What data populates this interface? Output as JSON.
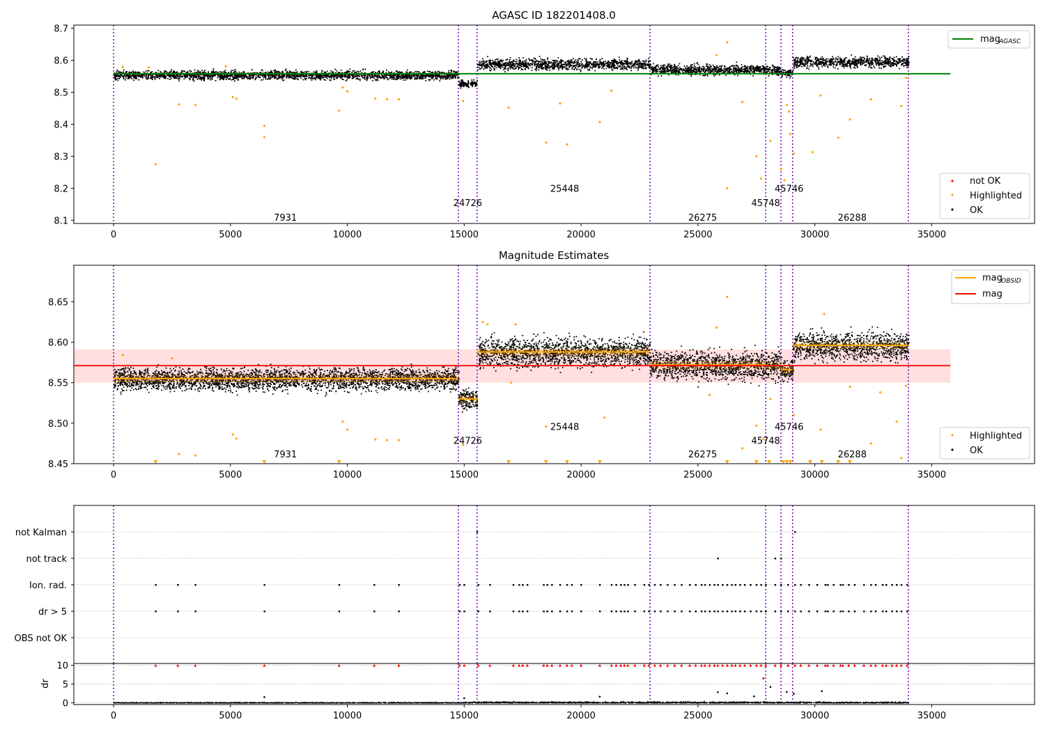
{
  "chart_data": [
    {
      "type": "scatter",
      "title": "AGASC ID 182201408.0",
      "xlim": [
        -1700,
        39400
      ],
      "ylim": [
        8.09,
        8.71
      ],
      "x_ticks": [
        0,
        5000,
        10000,
        15000,
        20000,
        25000,
        30000,
        35000
      ],
      "y_ticks": [
        8.1,
        8.2,
        8.3,
        8.4,
        8.5,
        8.6,
        8.7
      ],
      "y_tick_labels": [
        "8.1",
        "8.2",
        "8.3",
        "8.4",
        "8.5",
        "8.6",
        "8.7"
      ],
      "obs_boundaries": [
        0,
        14750,
        15550,
        22950,
        27900,
        28550,
        29050,
        34000
      ],
      "obs_labels": [
        {
          "text": "7931",
          "x": 7350,
          "y": 8.11
        },
        {
          "text": "24726",
          "x": 15150,
          "y": 8.155
        },
        {
          "text": "25448",
          "x": 19300,
          "y": 8.2
        },
        {
          "text": "26275",
          "x": 25200,
          "y": 8.11
        },
        {
          "text": "45748",
          "x": 27900,
          "y": 8.155
        },
        {
          "text": "45746",
          "x": 28900,
          "y": 8.2
        },
        {
          "text": "26288",
          "x": 31600,
          "y": 8.11
        }
      ],
      "segments": [
        {
          "x0": 0,
          "x1": 14750,
          "mean": 8.555,
          "halfwidth": 0.013
        },
        {
          "x0": 14750,
          "x1": 15550,
          "mean": 8.528,
          "halfwidth": 0.011
        },
        {
          "x0": 15550,
          "x1": 22950,
          "mean": 8.589,
          "halfwidth": 0.016
        },
        {
          "x0": 22950,
          "x1": 27900,
          "mean": 8.572,
          "halfwidth": 0.015
        },
        {
          "x0": 27900,
          "x1": 28550,
          "mean": 8.57,
          "halfwidth": 0.016
        },
        {
          "x0": 28550,
          "x1": 29050,
          "mean": 8.562,
          "halfwidth": 0.012
        },
        {
          "x0": 29050,
          "x1": 34000,
          "mean": 8.596,
          "halfwidth": 0.016
        }
      ],
      "series": [
        {
          "name": "mag_AGASC",
          "type": "hline",
          "y": 8.558,
          "x0": 0,
          "x1": 35800,
          "color": "#008000"
        },
        {
          "name": "not OK",
          "color": "#ff0000",
          "points": []
        },
        {
          "name": "Highlighted",
          "color": "#ffa500",
          "points": [
            [
              1800,
              8.275
            ],
            [
              2800,
              8.462
            ],
            [
              3500,
              8.46
            ],
            [
              5100,
              8.485
            ],
            [
              5250,
              8.48
            ],
            [
              6450,
              8.36
            ],
            [
              6450,
              8.395
            ],
            [
              9650,
              8.443
            ],
            [
              9800,
              8.515
            ],
            [
              10000,
              8.503
            ],
            [
              11200,
              8.48
            ],
            [
              11700,
              8.478
            ],
            [
              12200,
              8.478
            ],
            [
              14950,
              8.473
            ],
            [
              16900,
              8.452
            ],
            [
              18500,
              8.343
            ],
            [
              19100,
              8.465
            ],
            [
              19400,
              8.337
            ],
            [
              20800,
              8.407
            ],
            [
              21300,
              8.505
            ],
            [
              26250,
              8.2
            ],
            [
              26250,
              8.656
            ],
            [
              26900,
              8.47
            ],
            [
              27500,
              8.3
            ],
            [
              27700,
              8.23
            ],
            [
              28100,
              8.348
            ],
            [
              28550,
              8.26
            ],
            [
              28700,
              8.225
            ],
            [
              28800,
              8.46
            ],
            [
              28900,
              8.44
            ],
            [
              28950,
              8.37
            ],
            [
              29100,
              8.308
            ],
            [
              29900,
              8.313
            ],
            [
              30250,
              8.49
            ],
            [
              31000,
              8.358
            ],
            [
              31500,
              8.415
            ],
            [
              32400,
              8.478
            ],
            [
              33700,
              8.457
            ],
            [
              33900,
              8.545
            ],
            [
              1500,
              8.578
            ],
            [
              400,
              8.579
            ],
            [
              4800,
              8.581
            ],
            [
              25800,
              8.616
            ]
          ]
        },
        {
          "name": "OK",
          "color": "#000000",
          "points": []
        }
      ],
      "legend": {
        "position": "top-right",
        "entries": [
          "mag",
          "AGASC"
        ]
      },
      "legend2": {
        "position": "bottom-right",
        "entries": [
          "not OK",
          "Highlighted",
          "OK"
        ]
      }
    },
    {
      "type": "scatter",
      "title": "Magnitude Estimates",
      "xlim": [
        -1700,
        39400
      ],
      "ylim": [
        8.45,
        8.695
      ],
      "x_ticks": [
        0,
        5000,
        10000,
        15000,
        20000,
        25000,
        30000,
        35000
      ],
      "y_ticks": [
        8.45,
        8.5,
        8.55,
        8.6,
        8.65
      ],
      "y_tick_labels": [
        "8.45",
        "8.50",
        "8.55",
        "8.60",
        "8.65"
      ],
      "obs_boundaries": [
        0,
        14750,
        15550,
        22950,
        27900,
        28550,
        29050,
        34000
      ],
      "obs_labels": [
        {
          "text": "7931",
          "x": 7350,
          "y": 8.462
        },
        {
          "text": "24726",
          "x": 15150,
          "y": 8.479
        },
        {
          "text": "25448",
          "x": 19300,
          "y": 8.496
        },
        {
          "text": "26275",
          "x": 25200,
          "y": 8.462
        },
        {
          "text": "45748",
          "x": 27900,
          "y": 8.479
        },
        {
          "text": "45746",
          "x": 28900,
          "y": 8.496
        },
        {
          "text": "26288",
          "x": 31600,
          "y": 8.462
        }
      ],
      "band": {
        "y0": 8.55,
        "y1": 8.591,
        "x0": -1700,
        "x1": 35800,
        "color": "#ffb0b0"
      },
      "segments": [
        {
          "x0": 0,
          "x1": 14750,
          "mean": 8.555,
          "halfwidth": 0.013
        },
        {
          "x0": 14750,
          "x1": 15550,
          "mean": 8.53,
          "halfwidth": 0.011
        },
        {
          "x0": 15550,
          "x1": 22950,
          "mean": 8.588,
          "halfwidth": 0.017
        },
        {
          "x0": 22950,
          "x1": 27900,
          "mean": 8.572,
          "halfwidth": 0.016
        },
        {
          "x0": 27900,
          "x1": 28550,
          "mean": 8.571,
          "halfwidth": 0.016
        },
        {
          "x0": 28550,
          "x1": 29050,
          "mean": 8.566,
          "halfwidth": 0.012
        },
        {
          "x0": 29050,
          "x1": 34000,
          "mean": 8.596,
          "halfwidth": 0.016
        }
      ],
      "series": [
        {
          "name": "mag_OBSID",
          "color": "#ffa500",
          "type": "steps"
        },
        {
          "name": "mag",
          "type": "hline",
          "y": 8.571,
          "x0": -1700,
          "x1": 35800,
          "color": "#ff0000"
        },
        {
          "name": "Highlighted",
          "color": "#ffa500",
          "points": [
            [
              2800,
              8.462
            ],
            [
              3500,
              8.46
            ],
            [
              5100,
              8.486
            ],
            [
              5250,
              8.481
            ],
            [
              9800,
              8.502
            ],
            [
              10000,
              8.492
            ],
            [
              11200,
              8.48
            ],
            [
              11700,
              8.479
            ],
            [
              12200,
              8.479
            ],
            [
              14950,
              8.473
            ],
            [
              18500,
              8.496
            ],
            [
              21000,
              8.507
            ],
            [
              26250,
              8.656
            ],
            [
              26900,
              8.469
            ],
            [
              27500,
              8.497
            ],
            [
              27800,
              8.48
            ],
            [
              28100,
              8.53
            ],
            [
              29100,
              8.51
            ],
            [
              30250,
              8.492
            ],
            [
              32400,
              8.475
            ],
            [
              33500,
              8.502
            ],
            [
              33700,
              8.457
            ],
            [
              33900,
              8.546
            ],
            [
              15800,
              8.625
            ],
            [
              16000,
              8.622
            ],
            [
              17200,
              8.622
            ],
            [
              25800,
              8.618
            ],
            [
              30400,
              8.635
            ],
            [
              400,
              8.584
            ],
            [
              2500,
              8.58
            ],
            [
              17000,
              8.55
            ],
            [
              25500,
              8.535
            ],
            [
              31500,
              8.545
            ],
            [
              32800,
              8.538
            ]
          ]
        },
        {
          "name": "Highlighted (below range)",
          "color": "#ffa500",
          "marker": "v",
          "points": [
            [
              1800,
              8.45
            ],
            [
              6450,
              8.45
            ],
            [
              9650,
              8.45
            ],
            [
              16900,
              8.45
            ],
            [
              18500,
              8.45
            ],
            [
              19400,
              8.45
            ],
            [
              20800,
              8.45
            ],
            [
              26250,
              8.45
            ],
            [
              27500,
              8.45
            ],
            [
              28050,
              8.45
            ],
            [
              28650,
              8.45
            ],
            [
              28800,
              8.45
            ],
            [
              28950,
              8.45
            ],
            [
              29800,
              8.45
            ],
            [
              30300,
              8.45
            ],
            [
              31000,
              8.45
            ],
            [
              31500,
              8.45
            ]
          ]
        },
        {
          "name": "OK",
          "color": "#000000",
          "points": []
        }
      ],
      "legend": {
        "position": "top-right",
        "entries": [
          "mag",
          "OBSID",
          "mag"
        ]
      },
      "legend2": {
        "position": "bottom-right",
        "entries": [
          "Highlighted",
          "OK"
        ]
      }
    },
    {
      "type": "scatter",
      "title": "",
      "xlim": [
        -1700,
        39400
      ],
      "y_categories": [
        "not Kalman",
        "not track",
        "Ion. rad.",
        "dr > 5",
        "OBS not OK"
      ],
      "obs_boundaries": [
        0,
        14750,
        15550,
        22950,
        27900,
        28550,
        29050,
        34000
      ],
      "flag_events": [
        1800,
        2750,
        3500,
        6450,
        9650,
        11150,
        12200,
        14800,
        15000,
        15600,
        16100,
        17100,
        17350,
        17500,
        17700,
        18400,
        18550,
        18750,
        19100,
        19400,
        19600,
        20000,
        20800,
        21300,
        21500,
        21700,
        21850,
        22000,
        22300,
        22700,
        22900,
        23150,
        23400,
        23700,
        24000,
        24300,
        24650,
        24900,
        25150,
        25300,
        25500,
        25700,
        25850,
        26050,
        26250,
        26450,
        26600,
        26800,
        27000,
        27250,
        27500,
        27700,
        27900,
        28300,
        28550,
        28850,
        29150,
        29400,
        29750,
        30100,
        30450,
        30550,
        30800,
        31100,
        31200,
        31450,
        31700,
        32100,
        32400,
        32600,
        32900,
        33050,
        33300,
        33500,
        33700,
        33950
      ],
      "not_track": [
        25850,
        28300,
        28550
      ],
      "not_kalman": [
        15550,
        29150
      ]
    },
    {
      "type": "scatter",
      "title": "",
      "xlim": [
        -1700,
        39400
      ],
      "ylim": [
        -0.5,
        10.5
      ],
      "ylabel": "dr",
      "y_ticks": [
        0,
        5,
        10
      ],
      "y_tick_labels": [
        "0",
        "5",
        "10"
      ],
      "x_ticks": [
        0,
        5000,
        10000,
        15000,
        20000,
        25000,
        30000,
        35000
      ],
      "obs_boundaries": [
        0,
        14750,
        15550,
        22950,
        27900,
        28550,
        29050,
        34000
      ],
      "outliers": [
        [
          6450,
          1.5
        ],
        [
          20800,
          1.6
        ],
        [
          25850,
          2.8
        ],
        [
          26250,
          2.5
        ],
        [
          27400,
          1.7
        ],
        [
          27800,
          6.5
        ],
        [
          28100,
          4.2
        ],
        [
          28800,
          2.9
        ],
        [
          29100,
          2.4
        ],
        [
          30300,
          3.1
        ],
        [
          15000,
          1.2
        ]
      ]
    }
  ]
}
